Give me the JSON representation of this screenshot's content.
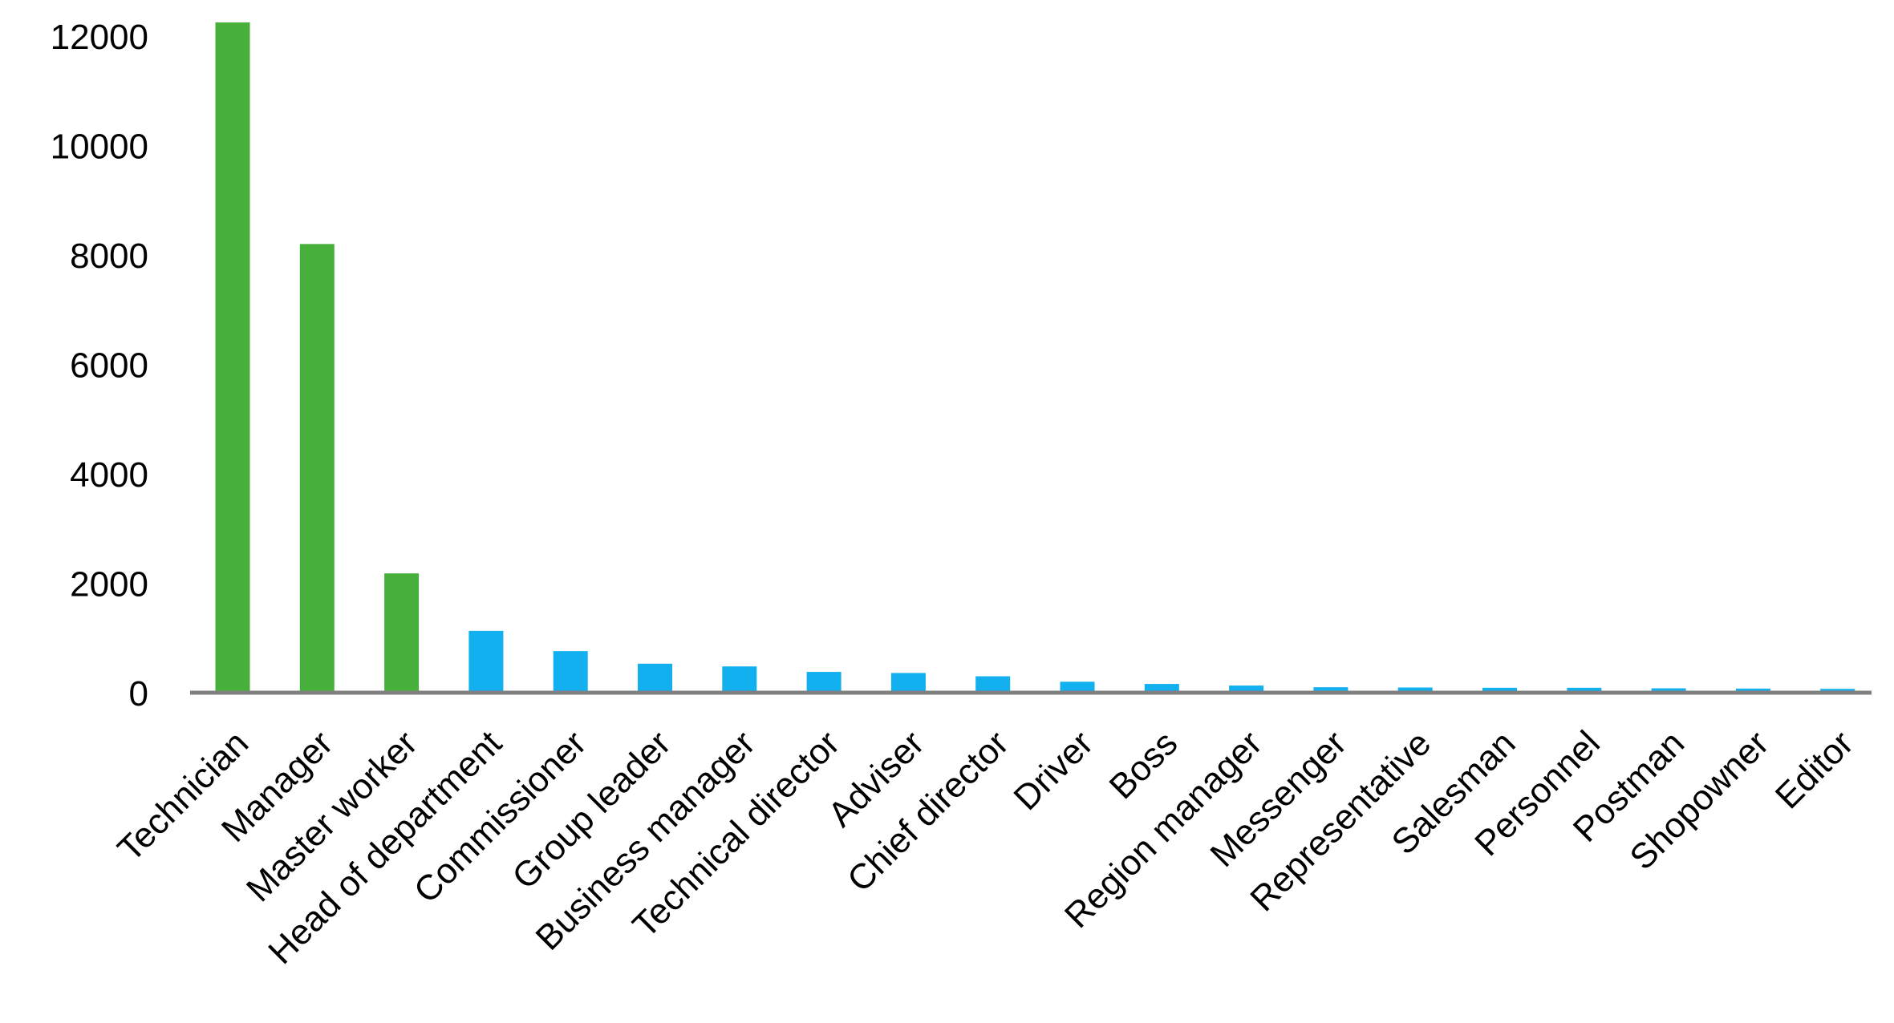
{
  "chart_data": {
    "type": "bar",
    "title": "",
    "xlabel": "",
    "ylabel": "",
    "ylim": [
      0,
      12000
    ],
    "yticks": [
      "0",
      "2000",
      "4000",
      "6000",
      "8000",
      "10000",
      "12000"
    ],
    "grid": false,
    "legend": "none",
    "categories": [
      "Technician",
      "Manager",
      "Master worker",
      "Head of department",
      "Commissioner",
      "Group leader",
      "Business manager",
      "Technical director",
      "Adviser",
      "Chief director",
      "Driver",
      "Boss",
      "Region manager",
      "Messenger",
      "Representative",
      "Salesman",
      "Personnel",
      "Postman",
      "Shopowner",
      "Editor"
    ],
    "values": [
      12250,
      8200,
      2180,
      1130,
      760,
      530,
      480,
      380,
      360,
      300,
      200,
      160,
      130,
      100,
      95,
      90,
      90,
      80,
      75,
      70
    ],
    "colors": {
      "highlight": "#46b03b",
      "normal": "#12b0ee",
      "axis": "#808080"
    },
    "highlighted_categories": [
      "Technician",
      "Manager",
      "Master worker"
    ]
  }
}
